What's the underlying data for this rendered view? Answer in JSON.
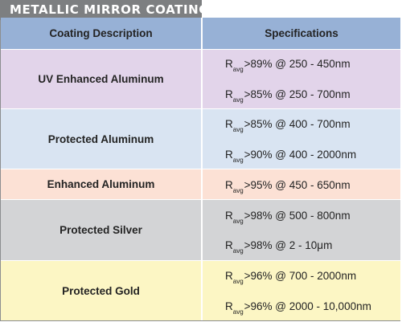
{
  "title": "METALLIC MIRROR COATINGS",
  "table": {
    "headers": [
      "Coating Description",
      "Specifications"
    ],
    "rows": [
      {
        "description": "UV Enhanced Aluminum",
        "specs": [
          {
            "symbol": "R",
            "sub": "avg",
            "text": ">89% @ 250 - 450nm"
          },
          {
            "symbol": "R",
            "sub": "avg",
            "text": ">85% @ 250 - 700nm"
          }
        ]
      },
      {
        "description": "Protected Aluminum",
        "specs": [
          {
            "symbol": "R",
            "sub": "avg",
            "text": ">85% @ 400 - 700nm"
          },
          {
            "symbol": "R",
            "sub": "avg",
            "text": ">90% @ 400 - 2000nm"
          }
        ]
      },
      {
        "description": "Enhanced Aluminum",
        "specs": [
          {
            "symbol": "R",
            "sub": "avg",
            "text": ">95% @ 450 - 650nm"
          }
        ]
      },
      {
        "description": "Protected Silver",
        "specs": [
          {
            "symbol": "R",
            "sub": "avg",
            "text": ">98% @ 500 - 800nm"
          },
          {
            "symbol": "R",
            "sub": "avg",
            "text": ">98% @ 2 - 10μm"
          }
        ]
      },
      {
        "description": "Protected Gold",
        "specs": [
          {
            "symbol": "R",
            "sub": "avg",
            "text": ">96% @ 700 - 2000nm"
          },
          {
            "symbol": "R",
            "sub": "avg",
            "text": ">96% @ 2000 - 10,000nm"
          }
        ]
      }
    ]
  },
  "colors": {
    "title_bar": "#7d7f81",
    "header": "#97b1d6",
    "uv_enhanced_aluminum": "#e2d4ea",
    "protected_aluminum": "#d9e4f2",
    "enhanced_aluminum": "#fce1d5",
    "protected_silver": "#d3d4d6",
    "protected_gold": "#fcf6c4"
  }
}
